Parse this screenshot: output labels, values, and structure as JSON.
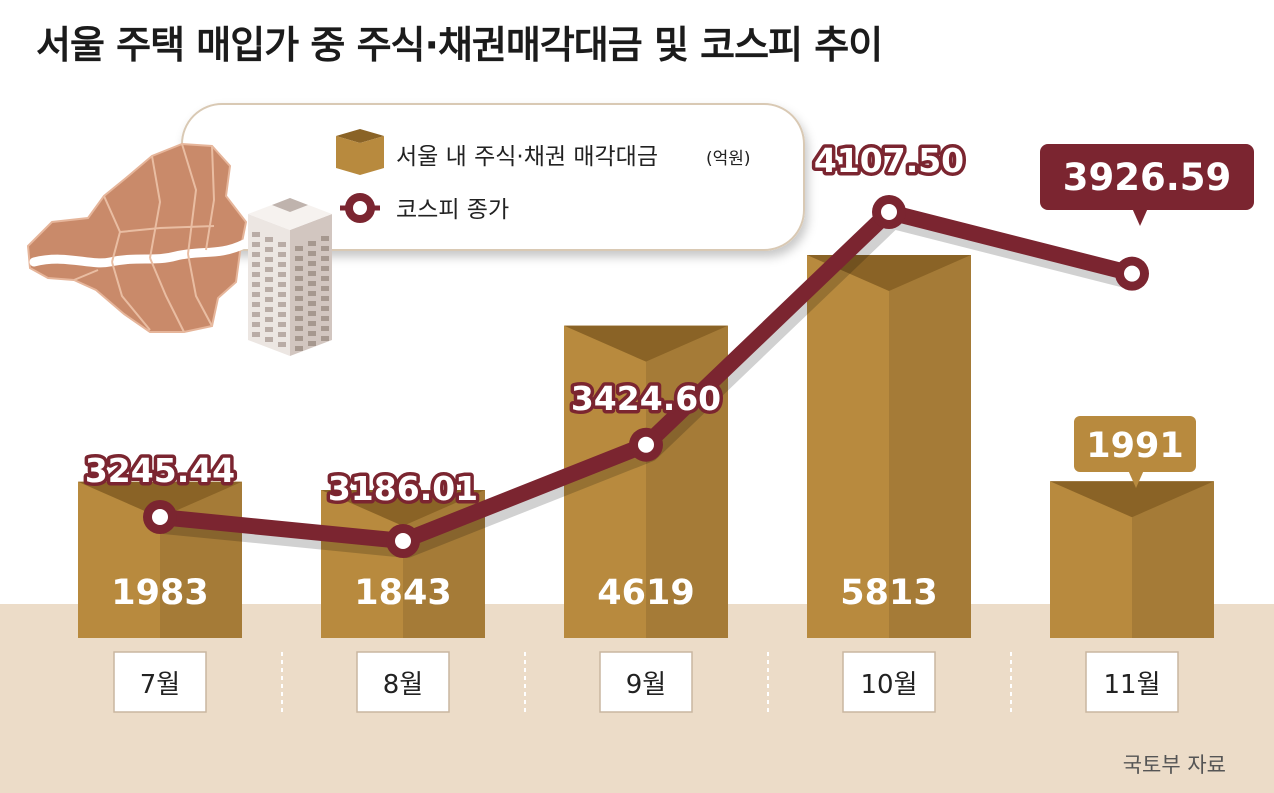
{
  "title": "서울 주택 매입가 중 주식·채권매각대금 및 코스피 추이",
  "legend": {
    "bar_label": "서울 내 주식·채권 매각대금",
    "bar_unit": "(억원)",
    "line_label": "코스피 종가"
  },
  "source": "국토부 자료",
  "colors": {
    "bar_front": "#b88a3e",
    "bar_top": "#8a6326",
    "line": "#7b2530",
    "floor": "#ecdcc8",
    "map": "#c98a6a"
  },
  "chart_data": {
    "type": "bar",
    "categories": [
      "7월",
      "8월",
      "9월",
      "10월",
      "11월"
    ],
    "series": [
      {
        "name": "서울 내 주식·채권 매각대금 (억원)",
        "type": "bar",
        "values": [
          1983,
          1843,
          4619,
          5813,
          1991
        ]
      },
      {
        "name": "코스피 종가",
        "type": "line",
        "values": [
          3245.44,
          3186.01,
          3424.6,
          4107.5,
          3926.59
        ]
      }
    ],
    "value_labels": {
      "bars": [
        "1983",
        "1843",
        "4619",
        "5813",
        "1991"
      ],
      "line": [
        "3245.44",
        "3186.01",
        "3424.60",
        "4107.50",
        "3926.59"
      ]
    }
  }
}
